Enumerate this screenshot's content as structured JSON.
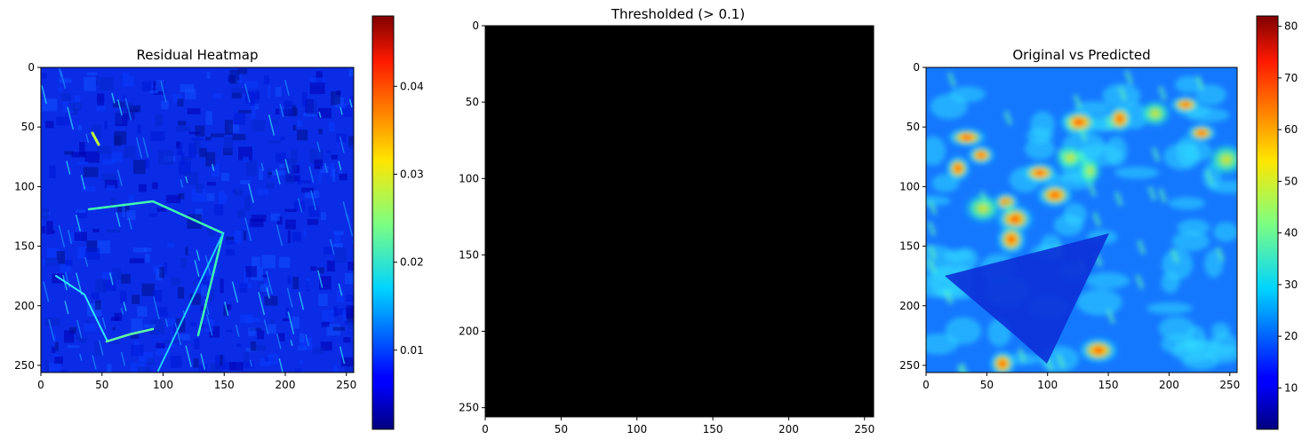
{
  "chart_data": [
    {
      "type": "heatmap",
      "title": "Residual Heatmap",
      "xlabel": "",
      "ylabel": "",
      "colormap": "jet",
      "xlim": [
        0,
        256
      ],
      "ylim": [
        256,
        0
      ],
      "xticks": [
        0,
        50,
        100,
        150,
        200,
        250
      ],
      "yticks": [
        0,
        50,
        100,
        150,
        200,
        250
      ],
      "colorbar": {
        "range": [
          0.001,
          0.048
        ],
        "ticks": [
          0.01,
          0.02,
          0.03,
          0.04
        ],
        "tick_labels": [
          "0.01",
          "0.02",
          "0.03",
          "0.04"
        ]
      }
    },
    {
      "type": "heatmap",
      "title": "Thresholded (> 0.1)",
      "xlabel": "",
      "ylabel": "",
      "colormap": "gray",
      "fill_color": "#000000",
      "xlim": [
        0,
        256
      ],
      "ylim": [
        256,
        0
      ],
      "xticks": [
        0,
        50,
        100,
        150,
        200,
        250
      ],
      "yticks": [
        0,
        50,
        100,
        150,
        200,
        250
      ]
    },
    {
      "type": "heatmap",
      "title": "Original vs Predicted",
      "xlabel": "",
      "ylabel": "",
      "colormap": "jet",
      "xlim": [
        0,
        256
      ],
      "ylim": [
        256,
        0
      ],
      "xticks": [
        0,
        50,
        100,
        150,
        200,
        250
      ],
      "yticks": [
        0,
        50,
        100,
        150,
        200,
        250
      ],
      "colorbar": {
        "range": [
          2,
          82
        ],
        "ticks": [
          10,
          20,
          30,
          40,
          50,
          60,
          70,
          80
        ],
        "tick_labels": [
          "10",
          "20",
          "30",
          "40",
          "50",
          "60",
          "70",
          "80"
        ]
      }
    }
  ]
}
